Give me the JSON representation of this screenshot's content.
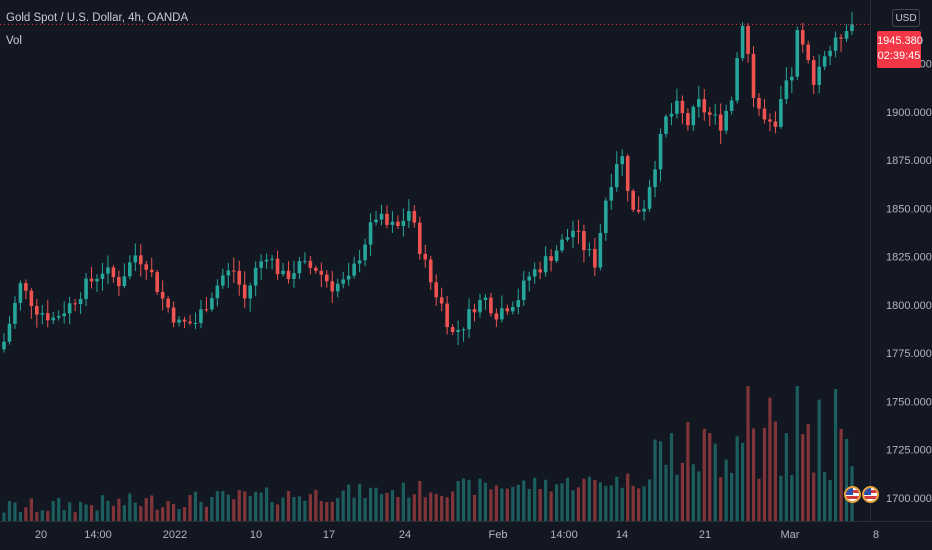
{
  "legend": {
    "title": "Gold Spot / U.S. Dollar, 4h, OANDA",
    "indicator": "Vol"
  },
  "currency_button": "USD",
  "last_price": {
    "price": "1945.380",
    "countdown": "02:39:45"
  },
  "colors": {
    "background": "#131722",
    "up": "#26a69a",
    "down": "#ef5350",
    "axis_text": "#b2b5be",
    "price_line": "#f23645",
    "event_ring": "#e9a13b"
  },
  "event_icons": [
    "us-flag-icon",
    "us-flag-icon"
  ],
  "chart_data": {
    "type": "candlestick",
    "instrument": "Gold Spot / U.S. Dollar",
    "timeframe": "4h",
    "source": "OANDA",
    "x_ticks": [
      "20",
      "14:00",
      "2022",
      "10",
      "17",
      "24",
      "Feb",
      "14:00",
      "14",
      "21",
      "Mar",
      "8"
    ],
    "y_ticks": [
      1700,
      1725,
      1750,
      1775,
      1800,
      1825,
      1850,
      1875,
      1900,
      1925
    ],
    "ylim": [
      1688,
      1958
    ],
    "last_price": 1945.38,
    "price_path": [
      [
        0,
        1781
      ],
      [
        3,
        1810
      ],
      [
        6,
        1798
      ],
      [
        9,
        1793
      ],
      [
        12,
        1800
      ],
      [
        15,
        1810
      ],
      [
        18,
        1818
      ],
      [
        21,
        1812
      ],
      [
        24,
        1826
      ],
      [
        26,
        1822
      ],
      [
        29,
        1803
      ],
      [
        32,
        1790
      ],
      [
        35,
        1791
      ],
      [
        38,
        1806
      ],
      [
        40,
        1815
      ],
      [
        42,
        1818
      ],
      [
        44,
        1803
      ],
      [
        46,
        1818
      ],
      [
        48,
        1827
      ],
      [
        51,
        1814
      ],
      [
        54,
        1820
      ],
      [
        57,
        1819
      ],
      [
        60,
        1810
      ],
      [
        63,
        1812
      ],
      [
        66,
        1833
      ],
      [
        68,
        1846
      ],
      [
        70,
        1841
      ],
      [
        72,
        1840
      ],
      [
        74,
        1849
      ],
      [
        76,
        1830
      ],
      [
        78,
        1812
      ],
      [
        80,
        1800
      ],
      [
        82,
        1785
      ],
      [
        84,
        1790
      ],
      [
        86,
        1800
      ],
      [
        88,
        1803
      ],
      [
        90,
        1796
      ],
      [
        92,
        1800
      ],
      [
        94,
        1804
      ],
      [
        96,
        1815
      ],
      [
        98,
        1820
      ],
      [
        100,
        1826
      ],
      [
        102,
        1832
      ],
      [
        104,
        1839
      ],
      [
        106,
        1830
      ],
      [
        108,
        1822
      ],
      [
        110,
        1855
      ],
      [
        112,
        1875
      ],
      [
        113,
        1876
      ],
      [
        115,
        1848
      ],
      [
        117,
        1852
      ],
      [
        119,
        1874
      ],
      [
        121,
        1896
      ],
      [
        123,
        1902
      ],
      [
        125,
        1894
      ],
      [
        127,
        1904
      ],
      [
        129,
        1898
      ],
      [
        131,
        1894
      ],
      [
        133,
        1908
      ],
      [
        135,
        1948
      ],
      [
        136,
        1930
      ],
      [
        137,
        1908
      ],
      [
        139,
        1895
      ],
      [
        141,
        1889
      ],
      [
        142,
        1905
      ],
      [
        144,
        1920
      ],
      [
        145,
        1940
      ],
      [
        147,
        1925
      ],
      [
        148,
        1918
      ],
      [
        150,
        1930
      ],
      [
        152,
        1935
      ],
      [
        154,
        1945.38
      ]
    ],
    "volume_axis": "Vol"
  }
}
